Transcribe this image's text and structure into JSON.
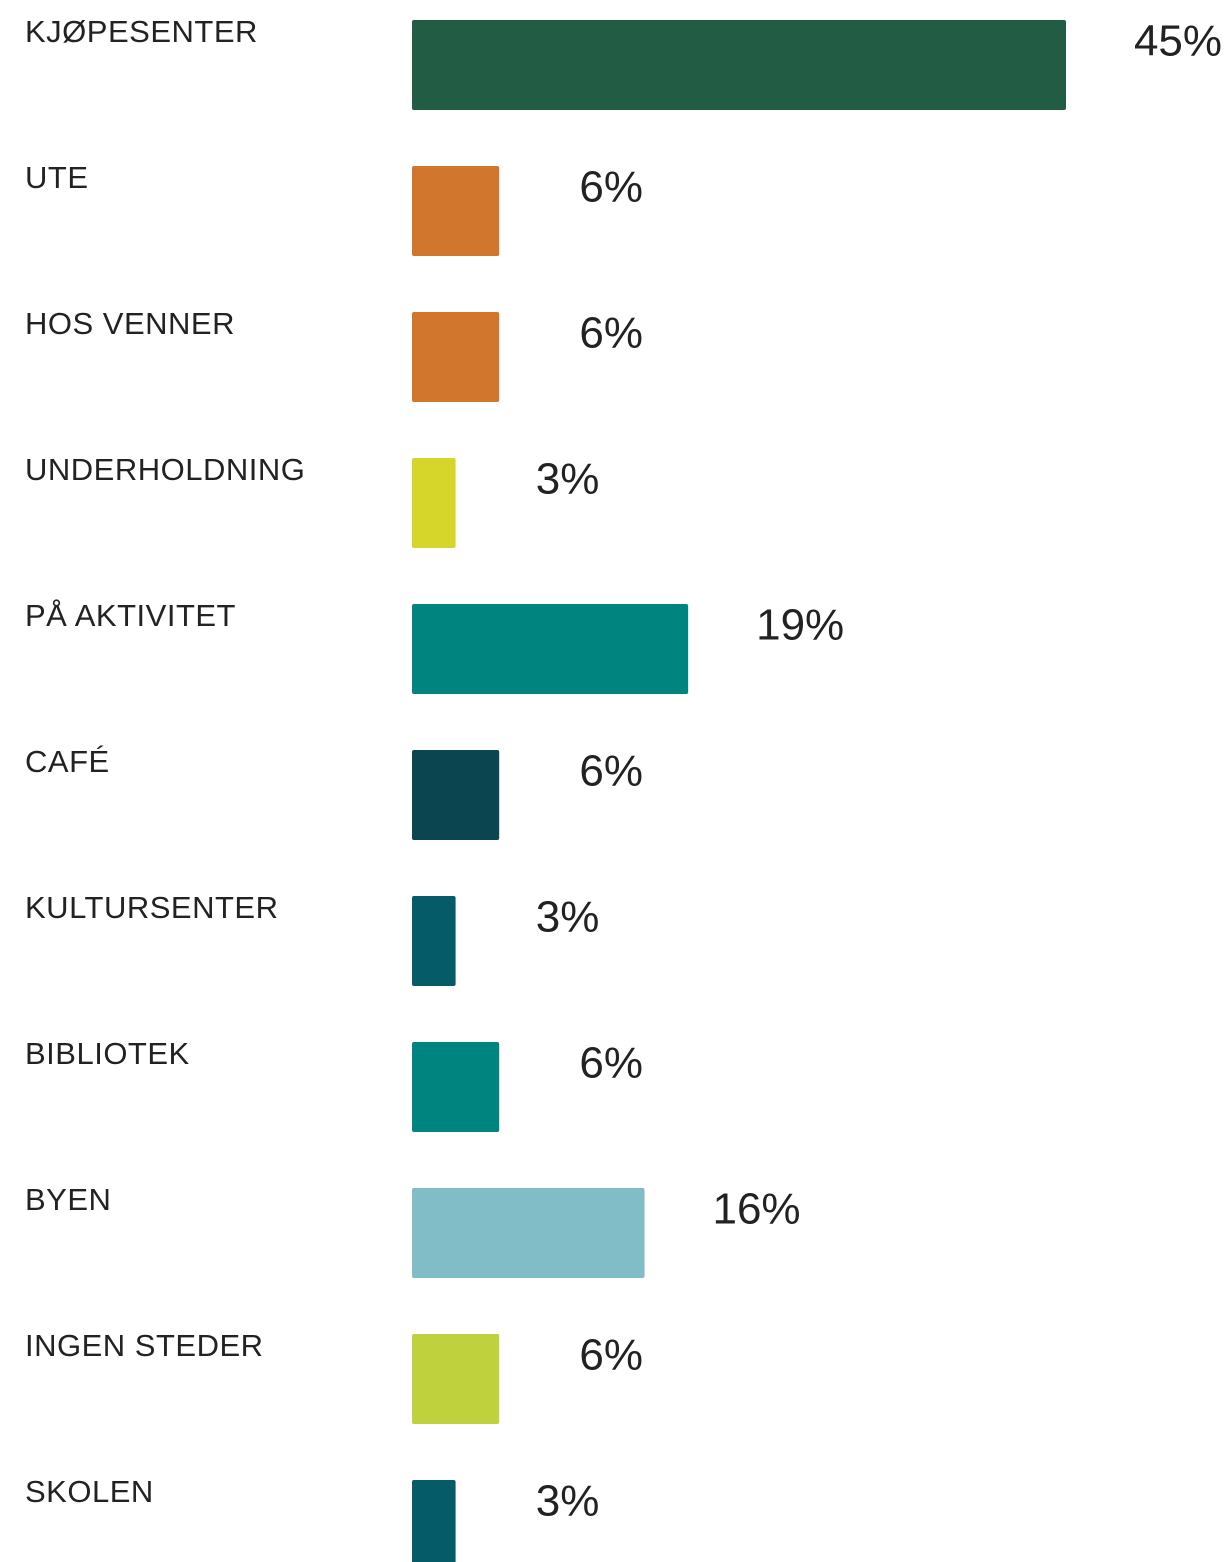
{
  "chart_data": {
    "type": "bar",
    "orientation": "horizontal",
    "categories": [
      "KJØPESENTER",
      "UTE",
      "HOS VENNER",
      "UNDERHOLDNING",
      "PÅ AKTIVITET",
      "CAFÉ",
      "KULTURSENTER",
      "BIBLIOTEK",
      "BYEN",
      "INGEN STEDER",
      "SKOLEN"
    ],
    "values": [
      45,
      6,
      6,
      3,
      19,
      6,
      3,
      6,
      16,
      6,
      3
    ],
    "value_labels": [
      "45%",
      "6%",
      "6%",
      "3%",
      "19%",
      "6%",
      "3%",
      "6%",
      "16%",
      "6%",
      "3%"
    ],
    "colors": [
      "#235c45",
      "#d0772d",
      "#d0772d",
      "#d6d62a",
      "#00847f",
      "#0b4550",
      "#055c68",
      "#00847f",
      "#80bdc6",
      "#bfd13c",
      "#055c68"
    ]
  }
}
